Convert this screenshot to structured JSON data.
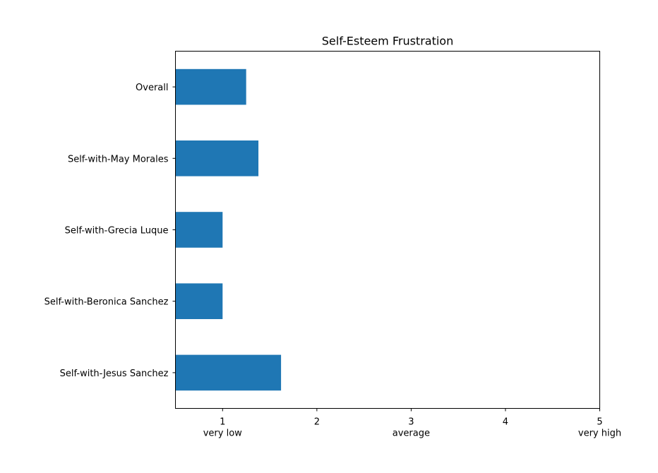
{
  "chart_data": {
    "type": "bar",
    "orientation": "horizontal",
    "title": "Self-Esteem Frustration",
    "xlabel": "",
    "ylabel": "",
    "categories": [
      "Overall",
      "Self-with-May Morales",
      "Self-with-Grecia Luque",
      "Self-with-Beronica Sanchez",
      "Self-with-Jesus Sanchez"
    ],
    "values": [
      1.25,
      1.38,
      1.0,
      1.0,
      1.62
    ],
    "xlim": [
      0.5,
      5
    ],
    "xticks": [
      1,
      2,
      3,
      4,
      5
    ],
    "xtick_labels": [
      "1",
      "2",
      "3",
      "4",
      "5"
    ],
    "xtick_sublabels": [
      "very low",
      "",
      "average",
      "",
      "very high"
    ],
    "bar_color": "#1f77b4",
    "grid": false,
    "legend": false
  }
}
